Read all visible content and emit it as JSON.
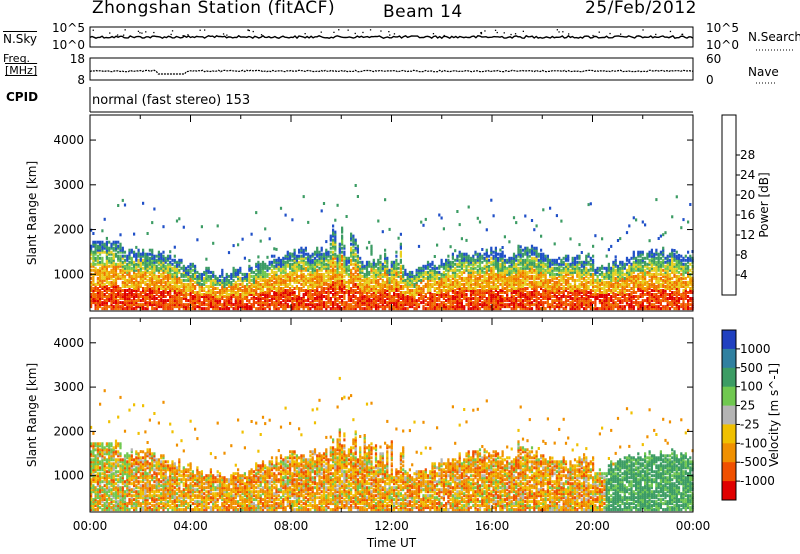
{
  "header": {
    "station": "Zhongshan Station (fitACF)",
    "beam": "Beam 14",
    "date": "25/Feb/2012"
  },
  "left_labels": {
    "nsky": "N.Sky",
    "freq": "Freq.",
    "freq_unit": "[MHz]",
    "cpid": "CPID"
  },
  "right_labels": {
    "nsearch": "N.Search",
    "nave": "Nave"
  },
  "cpid_text": "normal (fast stereo) 153",
  "chart_data": [
    {
      "type": "line",
      "name": "noise-panel",
      "left_ticks": [
        "10^5",
        "10^0"
      ],
      "right_ticks": [
        "10^5",
        "10^0"
      ]
    },
    {
      "type": "line",
      "name": "freq-nave-panel",
      "left_ticks": [
        "18",
        "8"
      ],
      "right_ticks": [
        "60",
        "0"
      ]
    },
    {
      "type": "heatmap",
      "name": "power",
      "ylabel": "Slant Range [km]",
      "yticks": [
        1000,
        2000,
        3000,
        4000
      ],
      "ylim": [
        180,
        4560
      ],
      "colorbar_label": "Power [dB]",
      "colorbar_ticks": [
        "4",
        "8",
        "12",
        "16",
        "20",
        "24",
        "28"
      ],
      "colorbar_colors": [
        "#0000ff",
        "#2050c8",
        "#3c9c64",
        "#70c850",
        "#e8d020",
        "#f0a000",
        "#f07000",
        "#f04000",
        "#e00000"
      ],
      "echo_bands": [
        {
          "t_start": 0.0,
          "t_end": 24.0,
          "r_min": 200,
          "r_max": 1300,
          "level": "high"
        },
        {
          "t_start": 2.0,
          "t_end": 12.0,
          "r_min": 1300,
          "r_max": 2200,
          "level": "medium"
        },
        {
          "t_start": 15.0,
          "t_end": 22.0,
          "r_min": 1200,
          "r_max": 2000,
          "level": "medium"
        }
      ]
    },
    {
      "type": "heatmap",
      "name": "velocity",
      "ylabel": "Slant Range [km]",
      "xlabel": "Time UT",
      "yticks": [
        1000,
        2000,
        3000,
        4000
      ],
      "ylim": [
        180,
        4560
      ],
      "xticks": [
        "00:00",
        "04:00",
        "08:00",
        "12:00",
        "16:00",
        "20:00",
        "00:00"
      ],
      "xlim": [
        0,
        24
      ],
      "colorbar_label": "Velocity [m s^-1]",
      "colorbar_ticks": [
        "1000",
        "500",
        "100",
        "25",
        "-25",
        "-100",
        "-500",
        "-1000"
      ],
      "colorbar_colors": [
        "#2040c0",
        "#3080a0",
        "#3c9c64",
        "#70c850",
        "#b4b4b4",
        "#f0c000",
        "#f09000",
        "#f05000",
        "#e00000"
      ]
    }
  ]
}
